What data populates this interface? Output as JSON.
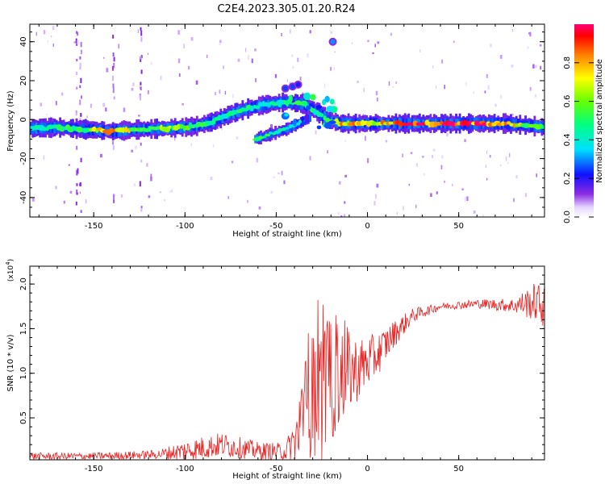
{
  "title": "C2E4.2023.305.01.20.R24",
  "chart_data": [
    {
      "type": "heatmap",
      "xlabel": "Height of straight line (km)",
      "ylabel": "Frequency (Hz)",
      "xlim": [
        -185,
        97
      ],
      "ylim": [
        -50,
        49
      ],
      "xticks": [
        -150,
        -100,
        -50,
        0,
        50
      ],
      "yticks": [
        -40,
        -20,
        0,
        20,
        40
      ],
      "colorbar": {
        "label": "Normalized spectral amplitude",
        "range": [
          0,
          1
        ],
        "ticks": [
          0.0,
          0.2,
          0.4,
          0.6,
          0.8
        ]
      },
      "ridge": [
        {
          "x": -185,
          "y": -4.5,
          "a": 0.45
        },
        {
          "x": -170,
          "y": -4,
          "a": 0.5
        },
        {
          "x": -155,
          "y": -5,
          "a": 0.55
        },
        {
          "x": -140,
          "y": -6,
          "a": 0.9
        },
        {
          "x": -125,
          "y": -5,
          "a": 0.6
        },
        {
          "x": -110,
          "y": -4.5,
          "a": 0.65
        },
        {
          "x": -95,
          "y": -3.5,
          "a": 0.55
        },
        {
          "x": -85,
          "y": -1,
          "a": 0.45
        },
        {
          "x": -75,
          "y": 3,
          "a": 0.5
        },
        {
          "x": -65,
          "y": 6,
          "a": 0.5
        },
        {
          "x": -55,
          "y": 8,
          "a": 0.45
        },
        {
          "x": -45,
          "y": 9,
          "a": 0.55
        },
        {
          "x": -35,
          "y": 8,
          "a": 0.5
        },
        {
          "x": -28,
          "y": 4,
          "a": 0.45
        },
        {
          "x": -22,
          "y": 0,
          "a": 0.5
        },
        {
          "x": -15,
          "y": -2,
          "a": 0.85
        },
        {
          "x": -5,
          "y": -2,
          "a": 0.8
        },
        {
          "x": 0,
          "y": -2,
          "a": 0.75
        },
        {
          "x": 20,
          "y": -2,
          "a": 0.9
        },
        {
          "x": 40,
          "y": -2,
          "a": 1.0
        },
        {
          "x": 60,
          "y": -2,
          "a": 0.95
        },
        {
          "x": 75,
          "y": -2,
          "a": 0.85
        },
        {
          "x": 88,
          "y": -3,
          "a": 0.65
        },
        {
          "x": 97,
          "y": -4,
          "a": 0.5
        }
      ],
      "secondary_ridge": [
        {
          "x": -62,
          "y": -10,
          "a": 0.55
        },
        {
          "x": -55,
          "y": -8,
          "a": 0.5
        },
        {
          "x": -45,
          "y": -5,
          "a": 0.45
        },
        {
          "x": -38,
          "y": -2,
          "a": 0.45
        },
        {
          "x": -32,
          "y": 1,
          "a": 0.4
        }
      ],
      "upper_blobs": [
        {
          "x": -45,
          "y": 16,
          "a": 0.25
        },
        {
          "x": -41,
          "y": 17,
          "a": 0.25
        },
        {
          "x": -38,
          "y": 18,
          "a": 0.2
        },
        {
          "x": -19,
          "y": 40,
          "a": 0.3
        }
      ]
    },
    {
      "type": "line",
      "xlabel": "Height of straight line (km)",
      "ylabel": "SNR (10 * v/v)",
      "y_multiplier_label": "(x10",
      "y_multiplier_exp": "4",
      "y_multiplier_close": ")",
      "xlim": [
        -185,
        97
      ],
      "ylim": [
        0.03,
        2.2
      ],
      "xticks": [
        -150,
        -100,
        -50,
        0,
        50
      ],
      "yticks": [
        0.5,
        1.0,
        1.5,
        2.0
      ],
      "series_color": "#e82222",
      "envelope": [
        {
          "x": -185,
          "y": 0.07,
          "amp": 0.04
        },
        {
          "x": -150,
          "y": 0.07,
          "amp": 0.04
        },
        {
          "x": -115,
          "y": 0.09,
          "amp": 0.05
        },
        {
          "x": -100,
          "y": 0.13,
          "amp": 0.12
        },
        {
          "x": -80,
          "y": 0.2,
          "amp": 0.14
        },
        {
          "x": -60,
          "y": 0.13,
          "amp": 0.1
        },
        {
          "x": -45,
          "y": 0.12,
          "amp": 0.1
        },
        {
          "x": -38,
          "y": 0.3,
          "amp": 0.3
        },
        {
          "x": -33,
          "y": 0.7,
          "amp": 0.65
        },
        {
          "x": -25,
          "y": 0.8,
          "amp": 0.8
        },
        {
          "x": -15,
          "y": 1.0,
          "amp": 0.6
        },
        {
          "x": -5,
          "y": 1.05,
          "amp": 0.35
        },
        {
          "x": 5,
          "y": 1.2,
          "amp": 0.25
        },
        {
          "x": 15,
          "y": 1.45,
          "amp": 0.15
        },
        {
          "x": 25,
          "y": 1.65,
          "amp": 0.08
        },
        {
          "x": 40,
          "y": 1.75,
          "amp": 0.04
        },
        {
          "x": 60,
          "y": 1.78,
          "amp": 0.05
        },
        {
          "x": 80,
          "y": 1.76,
          "amp": 0.08
        },
        {
          "x": 92,
          "y": 1.8,
          "amp": 0.22
        },
        {
          "x": 97,
          "y": 1.75,
          "amp": 0.25
        }
      ]
    }
  ]
}
